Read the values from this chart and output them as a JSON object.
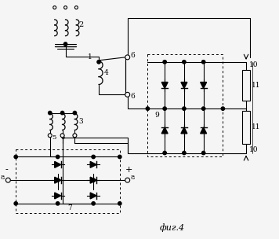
{
  "title": "фиг.4",
  "bg_color": "#f5f5f5",
  "line_color": "#000000",
  "fig_width": 3.56,
  "fig_height": 3.04,
  "dpi": 100
}
